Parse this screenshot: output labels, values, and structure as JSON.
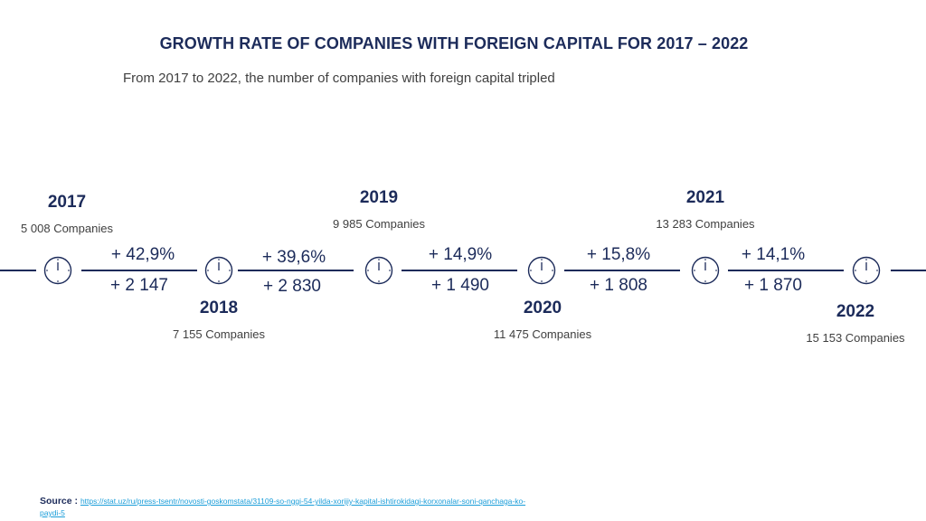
{
  "title": "GROWTH RATE OF COMPANIES WITH FOREIGN CAPITAL FOR 2017 – 2022",
  "subtitle": "From 2017 to 2022, the number of companies with foreign capital tripled",
  "timeline": [
    {
      "year": "2017",
      "companies": "5 008 Companies"
    },
    {
      "year": "2018",
      "companies": "7 155 Companies"
    },
    {
      "year": "2019",
      "companies": "9 985 Companies"
    },
    {
      "year": "2020",
      "companies": "11 475  Companies"
    },
    {
      "year": "2021",
      "companies": "13 283 Companies"
    },
    {
      "year": "2022",
      "companies": "15 153 Companies"
    }
  ],
  "segments": [
    {
      "rate": "+ 42,9%",
      "delta": "+ 2 147"
    },
    {
      "rate": "+ 39,6%",
      "delta": "+ 2 830"
    },
    {
      "rate": "+ 14,9%",
      "delta": "+ 1 490"
    },
    {
      "rate": "+ 15,8%",
      "delta": "+ 1 808"
    },
    {
      "rate": "+ 14,1%",
      "delta": "+ 1 870"
    }
  ],
  "icon": "clock-icon",
  "colors": {
    "primary": "#1c2b5a",
    "text": "#404040",
    "link": "#1a9dd9"
  },
  "source": {
    "label": "Source :",
    "url": "https://stat.uz/ru/press-tsentr/novosti-goskomstata/31109-so-nggi-54-yilda-xorijiy-kapital-ishtirokidagi-korxonalar-soni-qanchaga-ko-paydi-5"
  }
}
